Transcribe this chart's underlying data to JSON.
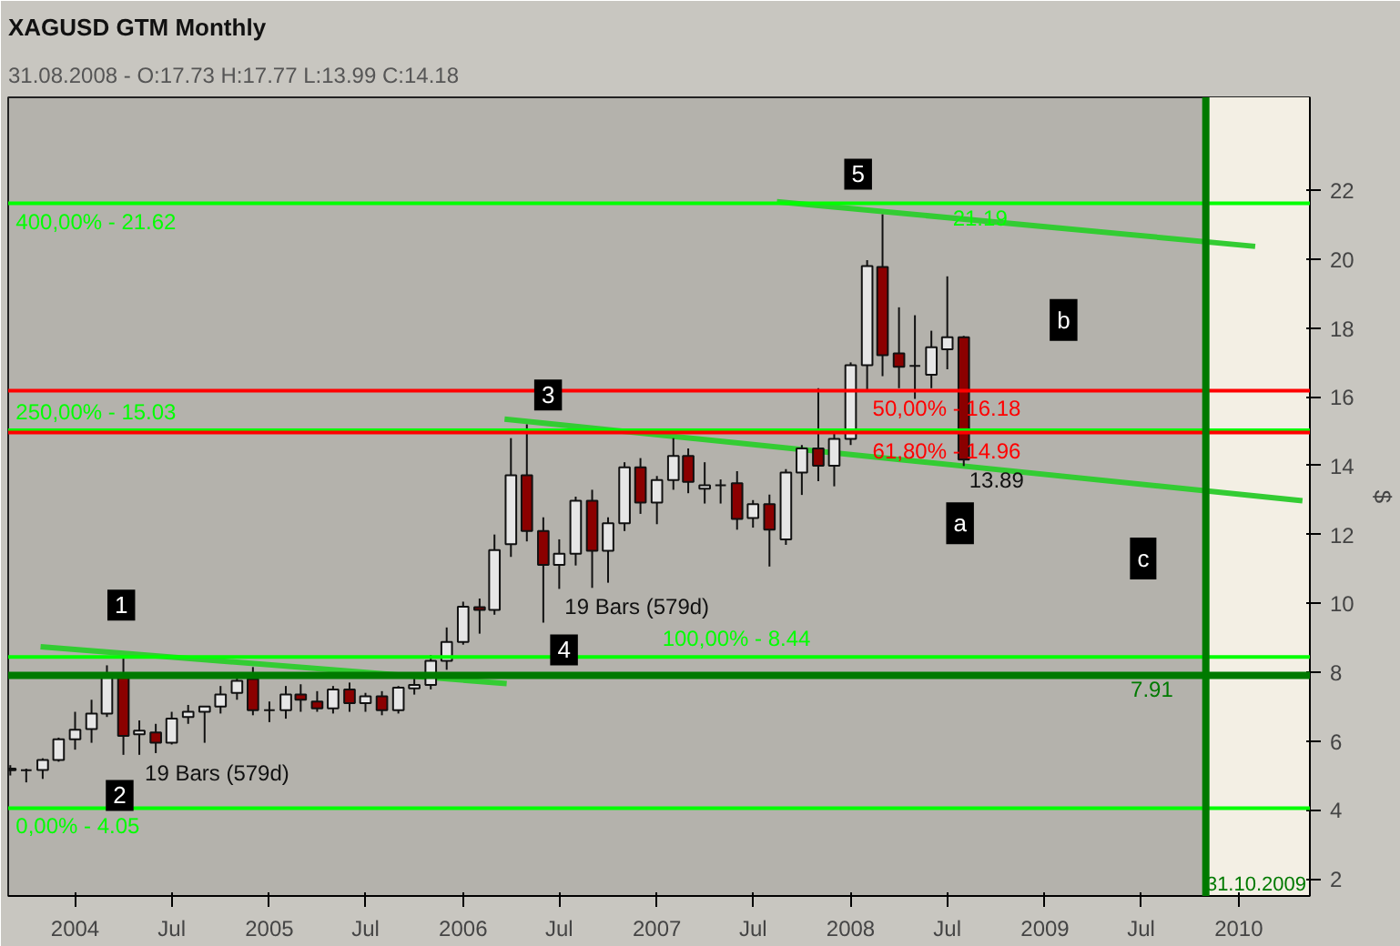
{
  "chart_data": {
    "type": "candlestick",
    "title": "XAGUSD GTM Monthly",
    "subtitle": "31.08.2008 - O:17.73 H:17.77 L:13.99 C:14.18",
    "ylabel": "$",
    "x": [
      "2003-09",
      "2003-10",
      "2003-11",
      "2003-12",
      "2004-01",
      "2004-02",
      "2004-03",
      "2004-04",
      "2004-05",
      "2004-06",
      "2004-07",
      "2004-08",
      "2004-09",
      "2004-10",
      "2004-11",
      "2004-12",
      "2005-01",
      "2005-02",
      "2005-03",
      "2005-04",
      "2005-05",
      "2005-06",
      "2005-07",
      "2005-08",
      "2005-09",
      "2005-10",
      "2005-11",
      "2005-12",
      "2006-01",
      "2006-02",
      "2006-03",
      "2006-04",
      "2006-05",
      "2006-06",
      "2006-07",
      "2006-08",
      "2006-09",
      "2006-10",
      "2006-11",
      "2006-12",
      "2007-01",
      "2007-02",
      "2007-03",
      "2007-04",
      "2007-05",
      "2007-06",
      "2007-07",
      "2007-08",
      "2007-09",
      "2007-10",
      "2007-11",
      "2007-12",
      "2008-01",
      "2008-02",
      "2008-03",
      "2008-04",
      "2008-05",
      "2008-06",
      "2008-07",
      "2008-08"
    ],
    "ohlc": [
      [
        5.15,
        5.3,
        5.0,
        5.2
      ],
      [
        5.15,
        5.2,
        4.8,
        5.15
      ],
      [
        5.16,
        5.5,
        4.9,
        5.45
      ],
      [
        5.45,
        6.1,
        5.4,
        6.05
      ],
      [
        6.05,
        6.85,
        5.75,
        6.33
      ],
      [
        6.35,
        7.2,
        5.95,
        6.8
      ],
      [
        6.8,
        8.2,
        6.7,
        7.95
      ],
      [
        7.95,
        8.42,
        5.6,
        6.15
      ],
      [
        6.2,
        6.6,
        5.6,
        6.3
      ],
      [
        6.25,
        6.5,
        5.65,
        5.95
      ],
      [
        5.95,
        6.85,
        5.9,
        6.65
      ],
      [
        6.7,
        7.05,
        6.5,
        6.85
      ],
      [
        6.85,
        7.0,
        5.95,
        7.0
      ],
      [
        7.0,
        7.6,
        6.8,
        7.35
      ],
      [
        7.4,
        7.95,
        7.2,
        7.75
      ],
      [
        7.8,
        8.15,
        6.75,
        6.9
      ],
      [
        6.9,
        7.15,
        6.55,
        6.9
      ],
      [
        6.9,
        7.6,
        6.65,
        7.35
      ],
      [
        7.35,
        7.65,
        6.85,
        7.2
      ],
      [
        7.15,
        7.45,
        6.85,
        6.95
      ],
      [
        6.95,
        7.6,
        6.8,
        7.5
      ],
      [
        7.5,
        7.7,
        6.85,
        7.1
      ],
      [
        7.1,
        7.4,
        6.85,
        7.3
      ],
      [
        7.3,
        7.45,
        6.75,
        6.9
      ],
      [
        6.9,
        7.6,
        6.8,
        7.55
      ],
      [
        7.53,
        7.81,
        7.35,
        7.63
      ],
      [
        7.63,
        8.5,
        7.5,
        8.33
      ],
      [
        8.33,
        9.3,
        8.07,
        8.88
      ],
      [
        8.88,
        10.05,
        8.8,
        9.9
      ],
      [
        9.89,
        10.14,
        9.12,
        9.81
      ],
      [
        9.81,
        12.0,
        9.67,
        11.55
      ],
      [
        11.72,
        14.8,
        11.35,
        13.72
      ],
      [
        13.72,
        15.2,
        11.8,
        12.1
      ],
      [
        12.1,
        12.5,
        9.44,
        11.12
      ],
      [
        11.12,
        11.86,
        10.42,
        11.44
      ],
      [
        11.44,
        13.1,
        11.1,
        12.98
      ],
      [
        12.98,
        13.3,
        10.45,
        11.53
      ],
      [
        11.53,
        12.5,
        10.6,
        12.33
      ],
      [
        12.33,
        14.1,
        12.1,
        13.95
      ],
      [
        13.95,
        14.22,
        12.6,
        12.93
      ],
      [
        12.93,
        13.7,
        12.3,
        13.58
      ],
      [
        13.58,
        14.8,
        13.3,
        14.28
      ],
      [
        14.28,
        14.5,
        13.2,
        13.53
      ],
      [
        13.33,
        14.1,
        12.9,
        13.43
      ],
      [
        13.43,
        13.6,
        12.9,
        13.43
      ],
      [
        13.49,
        13.84,
        12.14,
        12.45
      ],
      [
        12.48,
        13.0,
        12.2,
        12.88
      ],
      [
        12.88,
        13.16,
        11.07,
        12.14
      ],
      [
        11.86,
        13.9,
        11.7,
        13.8
      ],
      [
        13.8,
        14.6,
        13.15,
        14.5
      ],
      [
        14.5,
        16.25,
        13.55,
        14.0
      ],
      [
        14.0,
        14.95,
        13.4,
        14.78
      ],
      [
        14.78,
        17.0,
        14.6,
        16.92
      ],
      [
        16.92,
        19.97,
        16.17,
        19.8
      ],
      [
        19.77,
        21.3,
        16.6,
        17.21
      ],
      [
        17.26,
        18.6,
        16.25,
        16.87
      ],
      [
        16.9,
        18.37,
        15.94,
        16.9
      ],
      [
        16.64,
        17.92,
        16.25,
        17.44
      ],
      [
        17.38,
        19.5,
        16.8,
        17.73
      ],
      [
        17.73,
        17.77,
        13.99,
        14.18
      ]
    ],
    "series": [
      {
        "type": "line",
        "color": "#33cc33",
        "x": [
          "2007-08-15",
          "2010-02-01"
        ],
        "values": [
          21.67,
          20.37
        ]
      },
      {
        "type": "line",
        "color": "#33cc33",
        "x": [
          "2006-03-20",
          "2010-05-01"
        ],
        "values": [
          15.35,
          12.98
        ]
      },
      {
        "type": "line",
        "color": "#33cc33",
        "x": [
          "2003-10-28",
          "2006-03-24"
        ],
        "values": [
          8.74,
          7.67
        ]
      }
    ],
    "ref_lines": [
      {
        "axis": "y",
        "value": 21.62,
        "color": "#00ff00"
      },
      {
        "axis": "y",
        "value": 16.18,
        "color": "#ff0000"
      },
      {
        "axis": "y",
        "value": 15.03,
        "color": "#00ff00"
      },
      {
        "axis": "y",
        "value": 14.96,
        "color": "#ff0000"
      },
      {
        "axis": "y",
        "value": 8.44,
        "color": "#00ff00"
      },
      {
        "axis": "y",
        "value": 7.91,
        "color": "#007a00"
      },
      {
        "axis": "y",
        "value": 4.05,
        "color": "#00ff00"
      },
      {
        "axis": "x",
        "value": "2009-10-31",
        "label": "31.10.2009",
        "color": "#007a00"
      }
    ],
    "bands": [
      {
        "axis": "x",
        "from": "2009-10-31",
        "to": "2010-05-15",
        "color": "#f3efe4"
      }
    ],
    "annotations": [
      {
        "text": "1",
        "x": "2004-03-28",
        "y": 9.95
      },
      {
        "text": "2",
        "x": "2004-03-25",
        "y": 4.42
      },
      {
        "text": "3",
        "x": "2006-06-10",
        "y": 16.05
      },
      {
        "text": "4",
        "x": "2006-07-10",
        "y": 8.65
      },
      {
        "text": "5",
        "x": "2008-01-15",
        "y": 22.47
      },
      {
        "text": "a",
        "x": "2008-07-25",
        "y": 12.33
      },
      {
        "text": "b",
        "x": "2009-02-05",
        "y": 18.23
      },
      {
        "text": "c",
        "x": "2009-07-05",
        "y": 11.3
      },
      {
        "text": "21.19",
        "x": "2008-07",
        "y": 21.62
      },
      {
        "text": "13.89",
        "x": "2008-08",
        "y": 13.99
      },
      {
        "text": "19 Bars (579d)",
        "x": "2004-05",
        "y": 5.6
      },
      {
        "text": "19 Bars (579d)",
        "x": "2006-07",
        "y": 10.42
      },
      {
        "text": "400,00% - 21.62",
        "x": "2003-09",
        "y": 21.62
      },
      {
        "text": "50,00% - 16.18",
        "x": "2008-02",
        "y": 16.18
      },
      {
        "text": "250,00% - 15.03",
        "x": "2003-09",
        "y": 15.03
      },
      {
        "text": "61,80% - 14.96",
        "x": "2008-02",
        "y": 14.96
      },
      {
        "text": "100,00% - 8.44",
        "x": "2007-01",
        "y": 8.44
      },
      {
        "text": "7.91",
        "x": "2009-06",
        "y": 7.91
      },
      {
        "text": "0,00% - 4.05",
        "x": "2003-09",
        "y": 4.05
      }
    ],
    "xlim": [
      "2003-08-28",
      "2010-05-15"
    ],
    "ylim": [
      1.5,
      24.7
    ],
    "xticks": [
      {
        "value": "2004-01-01",
        "label": "2004"
      },
      {
        "value": "2004-07-01",
        "label": "Jul"
      },
      {
        "value": "2005-01-01",
        "label": "2005"
      },
      {
        "value": "2005-07-01",
        "label": "Jul"
      },
      {
        "value": "2006-01-01",
        "label": "2006"
      },
      {
        "value": "2006-07-01",
        "label": "Jul"
      },
      {
        "value": "2007-01-01",
        "label": "2007"
      },
      {
        "value": "2007-07-01",
        "label": "Jul"
      },
      {
        "value": "2008-01-01",
        "label": "2008"
      },
      {
        "value": "2008-07-01",
        "label": "Jul"
      },
      {
        "value": "2009-01-01",
        "label": "2009"
      },
      {
        "value": "2009-07-01",
        "label": "Jul"
      },
      {
        "value": "2010-01-01",
        "label": "2010"
      }
    ],
    "yticks": [
      2,
      4,
      6,
      8,
      10,
      12,
      14,
      16,
      18,
      20,
      22
    ],
    "grid": false
  }
}
